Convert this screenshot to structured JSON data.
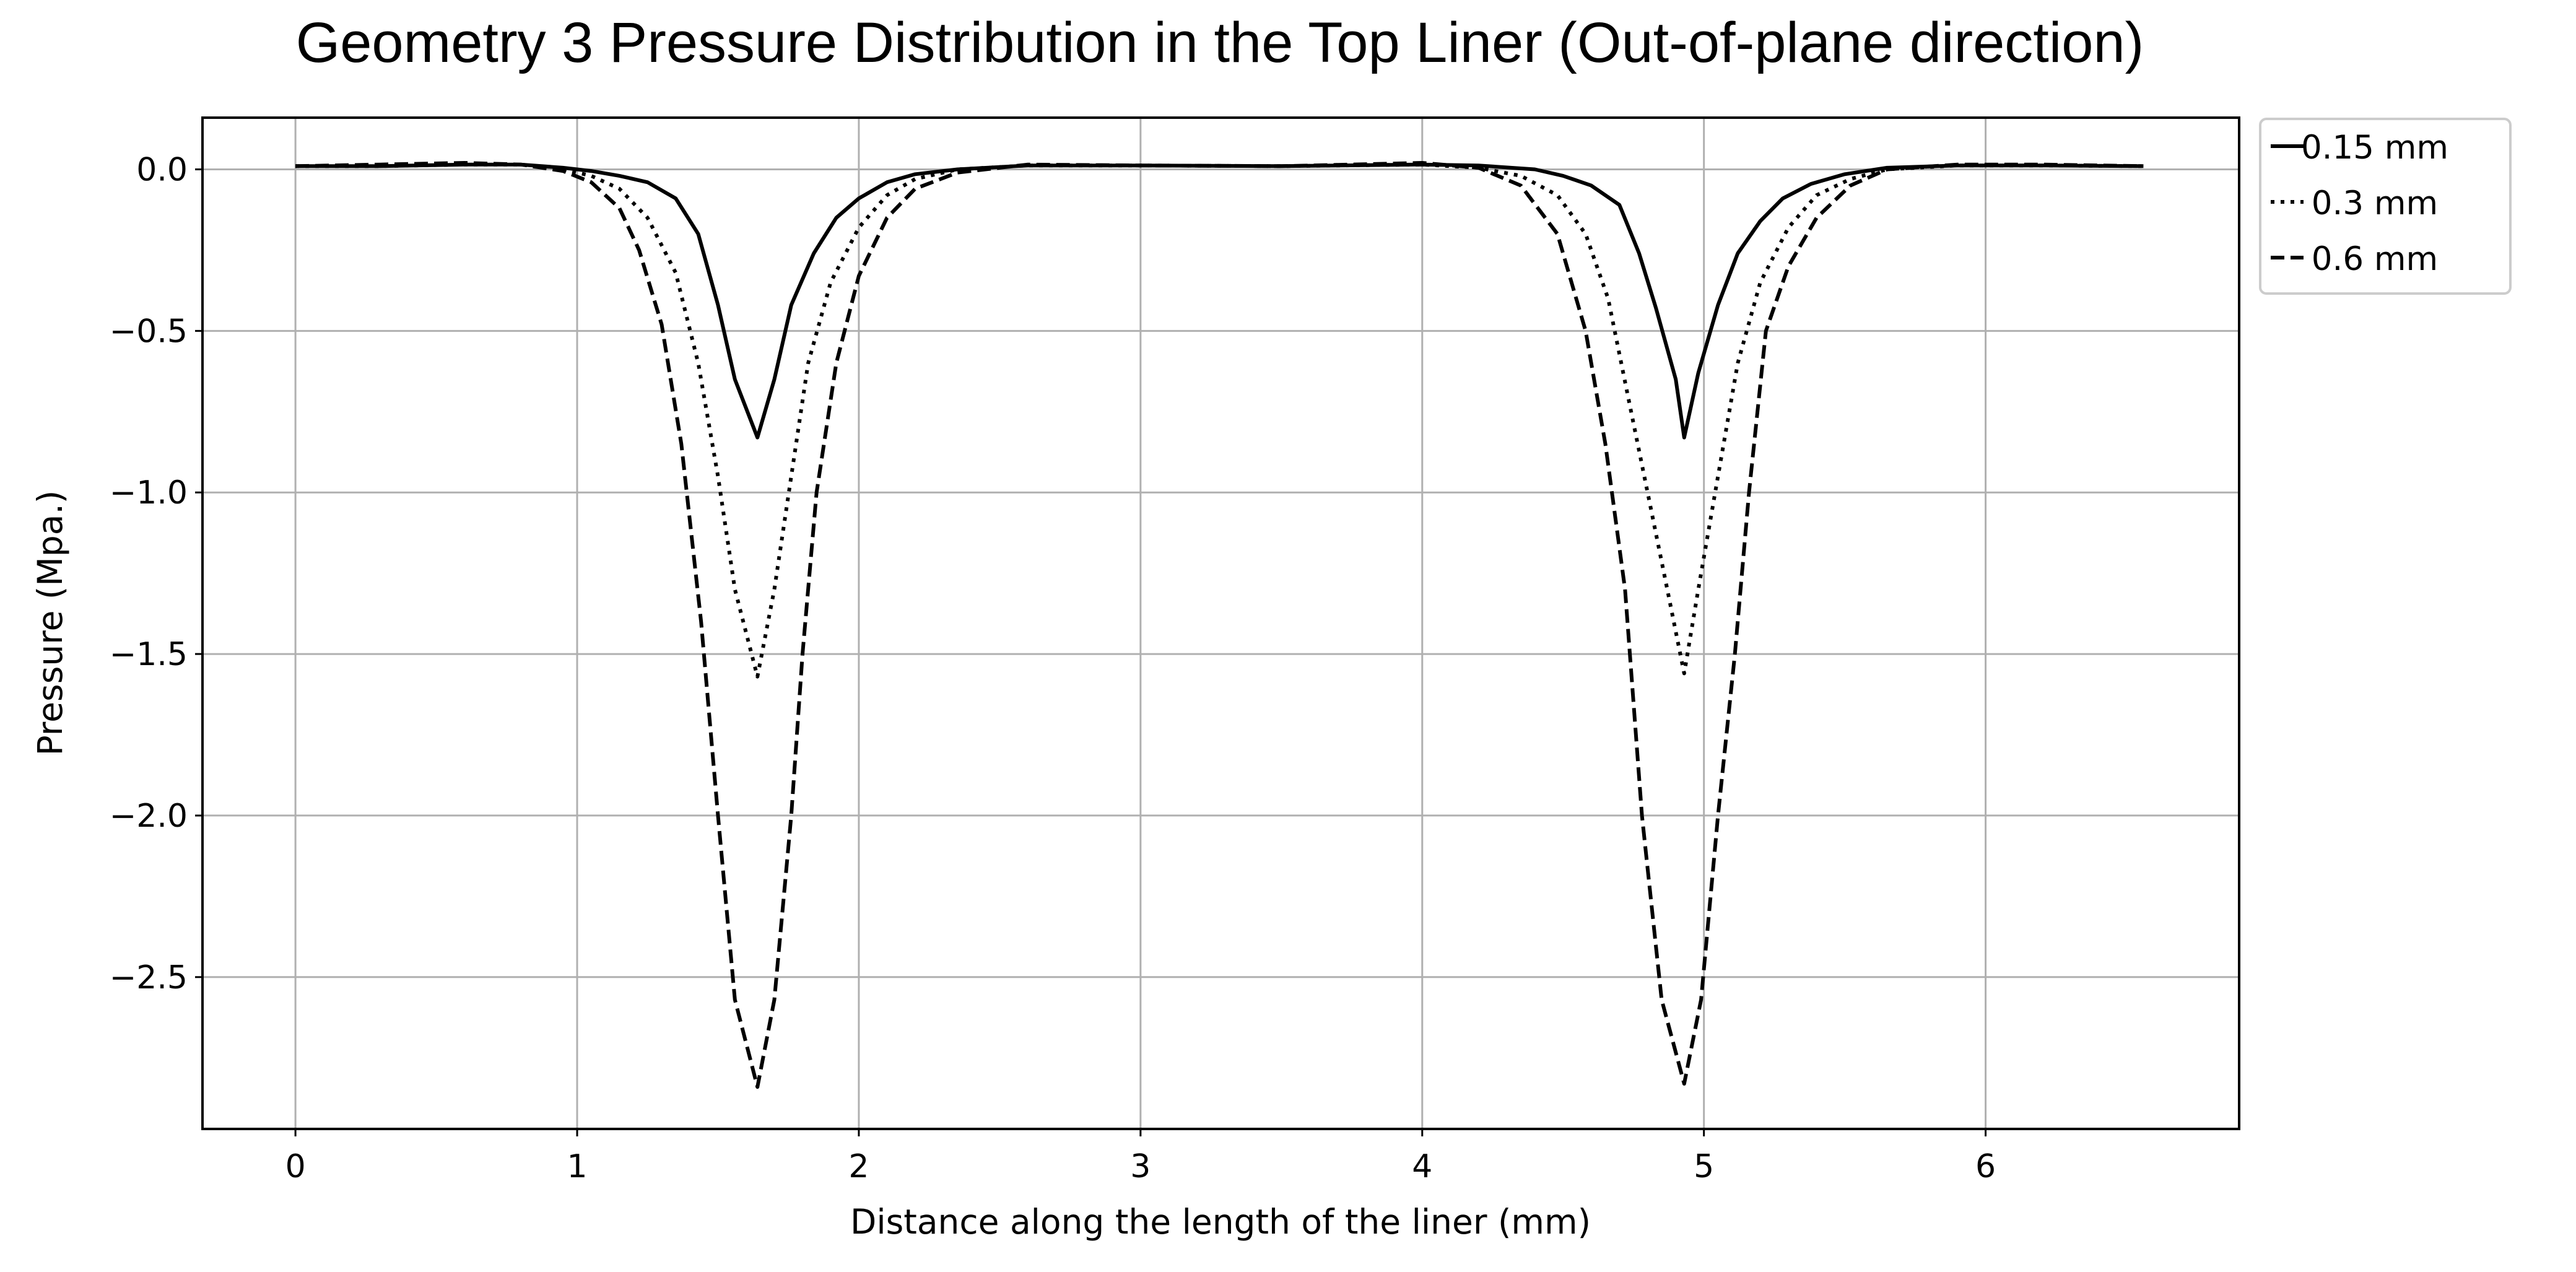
{
  "chart_data": {
    "type": "line",
    "title": "Geometry 3 Pressure Distribution in the Top Liner (Out-of-plane direction)",
    "xlabel": "Distance along the length of the liner (mm)",
    "ylabel": "Pressure (Mpa.)",
    "xlim": [
      -0.33,
      6.9
    ],
    "ylim": [
      -2.97,
      0.16
    ],
    "x_ticks": [
      0,
      1,
      2,
      3,
      4,
      5,
      6
    ],
    "x_tick_labels": [
      "0",
      "1",
      "2",
      "3",
      "4",
      "5",
      "6"
    ],
    "y_ticks": [
      0.0,
      -0.5,
      -1.0,
      -1.5,
      -2.0,
      -2.5
    ],
    "y_tick_labels": [
      "0.0",
      "−0.5",
      "−1.0",
      "−1.5",
      "−2.0",
      "−2.5"
    ],
    "grid": true,
    "legend_position": "outside top-right",
    "colors": {
      "line": "#000000",
      "grid": "#b0b0b0",
      "frame": "#000000",
      "legend_border": "#cccccc"
    },
    "series": [
      {
        "name": "0.15 mm",
        "style": "solid",
        "points": [
          [
            0.0,
            0.01
          ],
          [
            0.3,
            0.01
          ],
          [
            0.6,
            0.015
          ],
          [
            0.8,
            0.015
          ],
          [
            0.95,
            0.005
          ],
          [
            1.05,
            -0.005
          ],
          [
            1.15,
            -0.02
          ],
          [
            1.25,
            -0.04
          ],
          [
            1.35,
            -0.09
          ],
          [
            1.43,
            -0.2
          ],
          [
            1.5,
            -0.42
          ],
          [
            1.56,
            -0.65
          ],
          [
            1.64,
            -0.83
          ],
          [
            1.7,
            -0.65
          ],
          [
            1.76,
            -0.42
          ],
          [
            1.84,
            -0.26
          ],
          [
            1.92,
            -0.15
          ],
          [
            2.0,
            -0.09
          ],
          [
            2.1,
            -0.04
          ],
          [
            2.2,
            -0.015
          ],
          [
            2.35,
            0.0
          ],
          [
            2.6,
            0.012
          ],
          [
            3.0,
            0.012
          ],
          [
            3.5,
            0.01
          ],
          [
            4.0,
            0.015
          ],
          [
            4.2,
            0.012
          ],
          [
            4.4,
            0.0
          ],
          [
            4.5,
            -0.02
          ],
          [
            4.6,
            -0.05
          ],
          [
            4.7,
            -0.11
          ],
          [
            4.77,
            -0.26
          ],
          [
            4.83,
            -0.43
          ],
          [
            4.9,
            -0.65
          ],
          [
            4.93,
            -0.83
          ],
          [
            4.98,
            -0.63
          ],
          [
            5.05,
            -0.42
          ],
          [
            5.12,
            -0.26
          ],
          [
            5.2,
            -0.16
          ],
          [
            5.28,
            -0.09
          ],
          [
            5.38,
            -0.045
          ],
          [
            5.5,
            -0.015
          ],
          [
            5.65,
            0.005
          ],
          [
            5.9,
            0.012
          ],
          [
            6.2,
            0.012
          ],
          [
            6.56,
            0.01
          ]
        ]
      },
      {
        "name": "0.3 mm",
        "style": "dotted",
        "points": [
          [
            0.0,
            0.01
          ],
          [
            0.3,
            0.01
          ],
          [
            0.6,
            0.015
          ],
          [
            0.8,
            0.015
          ],
          [
            0.95,
            0.0
          ],
          [
            1.05,
            -0.02
          ],
          [
            1.15,
            -0.06
          ],
          [
            1.25,
            -0.15
          ],
          [
            1.35,
            -0.32
          ],
          [
            1.43,
            -0.6
          ],
          [
            1.5,
            -0.95
          ],
          [
            1.56,
            -1.3
          ],
          [
            1.64,
            -1.57
          ],
          [
            1.7,
            -1.3
          ],
          [
            1.76,
            -0.95
          ],
          [
            1.82,
            -0.6
          ],
          [
            1.9,
            -0.35
          ],
          [
            2.0,
            -0.18
          ],
          [
            2.1,
            -0.08
          ],
          [
            2.2,
            -0.03
          ],
          [
            2.35,
            0.0
          ],
          [
            2.6,
            0.012
          ],
          [
            3.0,
            0.012
          ],
          [
            3.5,
            0.01
          ],
          [
            4.0,
            0.015
          ],
          [
            4.2,
            0.005
          ],
          [
            4.35,
            -0.02
          ],
          [
            4.48,
            -0.08
          ],
          [
            4.58,
            -0.2
          ],
          [
            4.66,
            -0.4
          ],
          [
            4.73,
            -0.7
          ],
          [
            4.8,
            -1.0
          ],
          [
            4.87,
            -1.3
          ],
          [
            4.93,
            -1.56
          ],
          [
            4.98,
            -1.3
          ],
          [
            5.05,
            -0.95
          ],
          [
            5.12,
            -0.6
          ],
          [
            5.2,
            -0.35
          ],
          [
            5.3,
            -0.18
          ],
          [
            5.4,
            -0.08
          ],
          [
            5.52,
            -0.03
          ],
          [
            5.65,
            0.0
          ],
          [
            5.9,
            0.012
          ],
          [
            6.2,
            0.012
          ],
          [
            6.56,
            0.01
          ]
        ]
      },
      {
        "name": "0.6 mm",
        "style": "dashed",
        "points": [
          [
            0.0,
            0.01
          ],
          [
            0.3,
            0.015
          ],
          [
            0.6,
            0.02
          ],
          [
            0.8,
            0.015
          ],
          [
            0.95,
            -0.005
          ],
          [
            1.05,
            -0.04
          ],
          [
            1.15,
            -0.12
          ],
          [
            1.22,
            -0.25
          ],
          [
            1.3,
            -0.48
          ],
          [
            1.37,
            -0.85
          ],
          [
            1.44,
            -1.4
          ],
          [
            1.5,
            -2.0
          ],
          [
            1.56,
            -2.57
          ],
          [
            1.64,
            -2.84
          ],
          [
            1.7,
            -2.57
          ],
          [
            1.76,
            -2.0
          ],
          [
            1.8,
            -1.5
          ],
          [
            1.85,
            -1.0
          ],
          [
            1.92,
            -0.6
          ],
          [
            2.0,
            -0.33
          ],
          [
            2.1,
            -0.15
          ],
          [
            2.2,
            -0.06
          ],
          [
            2.35,
            -0.01
          ],
          [
            2.6,
            0.015
          ],
          [
            3.0,
            0.012
          ],
          [
            3.5,
            0.01
          ],
          [
            4.0,
            0.02
          ],
          [
            4.2,
            0.005
          ],
          [
            4.35,
            -0.05
          ],
          [
            4.48,
            -0.2
          ],
          [
            4.58,
            -0.5
          ],
          [
            4.65,
            -0.85
          ],
          [
            4.72,
            -1.3
          ],
          [
            4.78,
            -2.0
          ],
          [
            4.85,
            -2.57
          ],
          [
            4.93,
            -2.83
          ],
          [
            4.99,
            -2.57
          ],
          [
            5.05,
            -2.0
          ],
          [
            5.11,
            -1.5
          ],
          [
            5.16,
            -1.0
          ],
          [
            5.22,
            -0.5
          ],
          [
            5.3,
            -0.3
          ],
          [
            5.4,
            -0.15
          ],
          [
            5.52,
            -0.05
          ],
          [
            5.65,
            0.0
          ],
          [
            5.9,
            0.015
          ],
          [
            6.2,
            0.015
          ],
          [
            6.56,
            0.01
          ]
        ]
      }
    ]
  }
}
